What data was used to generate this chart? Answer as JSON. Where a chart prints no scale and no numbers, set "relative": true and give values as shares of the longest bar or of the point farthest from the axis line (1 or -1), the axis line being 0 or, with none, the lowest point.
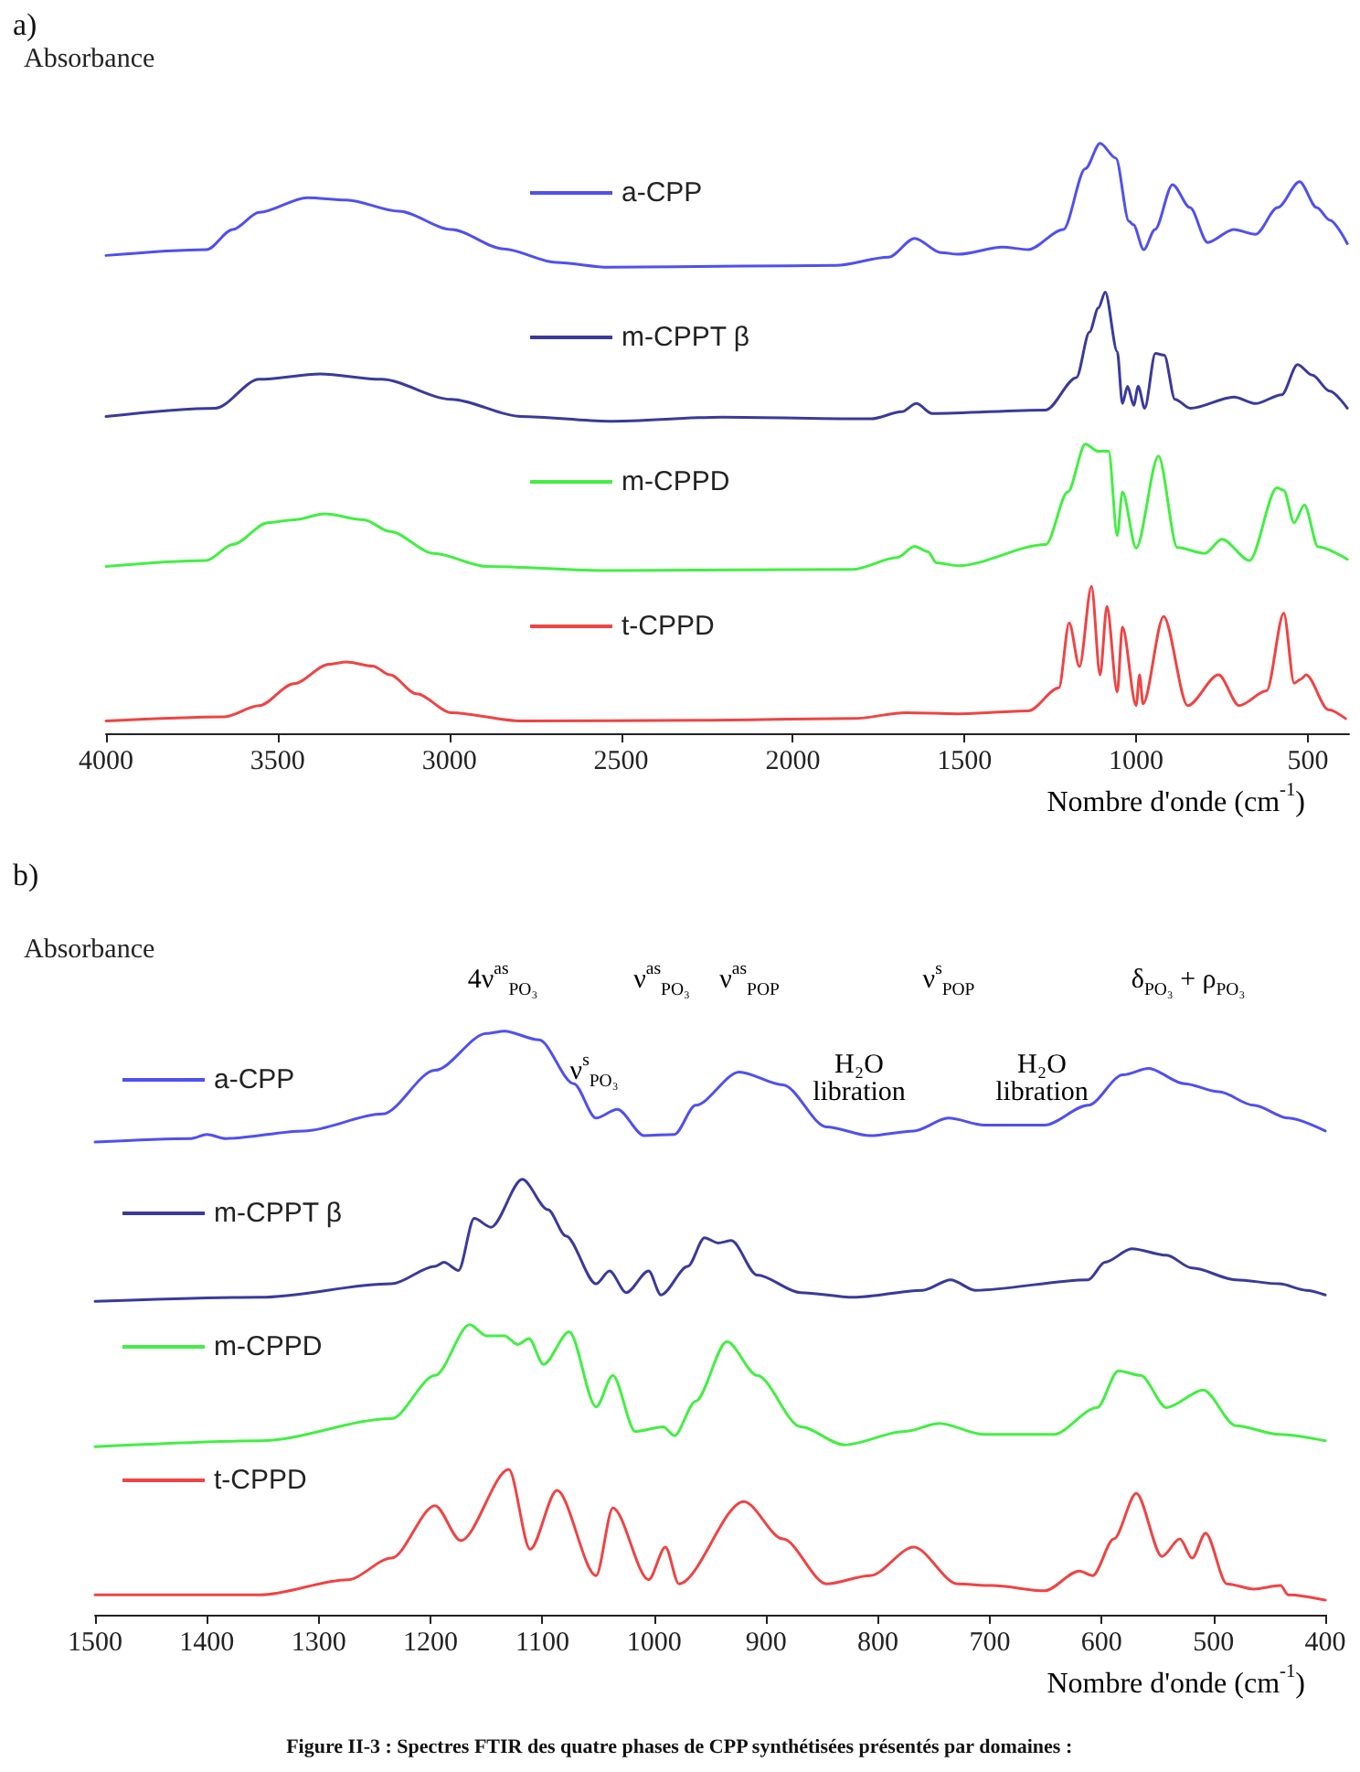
{
  "chart_data": [
    {
      "type": "line",
      "title": "a)",
      "ylabel": "Absorbance",
      "xlabel": "Nombre d'onde (cm$^{-1}$)",
      "relative": true,
      "xlim": [
        4000,
        380
      ],
      "xticks": [
        4000,
        3500,
        3000,
        2500,
        2000,
        1500,
        1000,
        500
      ],
      "grid": false,
      "legend": "left",
      "marker": "none",
      "line_style": "solid",
      "series": [
        {
          "name": "a-CPP",
          "color": "#5050ee",
          "x": [
            4000,
            3707,
            3631,
            3554,
            3414,
            3300,
            3147,
            2994,
            2842,
            2689,
            2536,
            2154,
            1874,
            1721,
            1645,
            1569,
            1518,
            1390,
            1314,
            1212,
            1148,
            1105,
            1059,
            1021,
            1008,
            978,
            945,
            894,
            843,
            792,
            716,
            652,
            588,
            524,
            474,
            436,
            385
          ],
          "values": [
            0.81,
            0.82,
            0.854,
            0.883,
            0.908,
            0.904,
            0.885,
            0.854,
            0.821,
            0.798,
            0.79,
            0.792,
            0.793,
            0.807,
            0.839,
            0.815,
            0.812,
            0.824,
            0.82,
            0.854,
            0.957,
            1,
            0.975,
            0.868,
            0.862,
            0.82,
            0.854,
            0.93,
            0.891,
            0.832,
            0.854,
            0.846,
            0.891,
            0.935,
            0.891,
            0.87,
            0.83
          ]
        },
        {
          "name": "m-CPPT β",
          "color": "#3a3a9a",
          "x": [
            4000,
            3682,
            3554,
            3376,
            3198,
            2994,
            2791,
            2536,
            2205,
            1772,
            1683,
            1640,
            1594,
            1263,
            1174,
            1136,
            1110,
            1090,
            1055,
            1040,
            1025,
            1007,
            994,
            975,
            944,
            918,
            887,
            842,
            715,
            652,
            576,
            530,
            487,
            436,
            385
          ],
          "values": [
            0.537,
            0.551,
            0.6,
            0.609,
            0.6,
            0.566,
            0.537,
            0.529,
            0.536,
            0.533,
            0.545,
            0.559,
            0.542,
            0.548,
            0.603,
            0.68,
            0.721,
            0.748,
            0.647,
            0.559,
            0.588,
            0.556,
            0.588,
            0.551,
            0.644,
            0.641,
            0.566,
            0.551,
            0.57,
            0.559,
            0.574,
            0.625,
            0.607,
            0.58,
            0.551
          ]
        },
        {
          "name": "m-CPPD",
          "color": "#44ee44",
          "x": [
            4000,
            3707,
            3631,
            3529,
            3453,
            3363,
            3249,
            3173,
            3045,
            2892,
            2536,
            1823,
            1696,
            1645,
            1607,
            1581,
            1518,
            1263,
            1199,
            1148,
            1110,
            1080,
            1055,
            1040,
            1000,
            935,
            880,
            800,
            750,
            670,
            590,
            570,
            540,
            510,
            470,
            385
          ],
          "values": [
            0.283,
            0.293,
            0.32,
            0.357,
            0.362,
            0.372,
            0.362,
            0.342,
            0.305,
            0.283,
            0.276,
            0.278,
            0.298,
            0.317,
            0.308,
            0.289,
            0.284,
            0.32,
            0.409,
            0.49,
            0.478,
            0.478,
            0.335,
            0.409,
            0.314,
            0.47,
            0.315,
            0.305,
            0.329,
            0.293,
            0.416,
            0.412,
            0.357,
            0.387,
            0.316,
            0.295
          ]
        },
        {
          "name": "t-CPPD",
          "color": "#ee4444",
          "x": [
            4000,
            3656,
            3554,
            3453,
            3351,
            3300,
            3223,
            3173,
            3096,
            2994,
            2791,
            2282,
            1823,
            1670,
            1518,
            1314,
            1225,
            1195,
            1165,
            1130,
            1105,
            1085,
            1055,
            1040,
            1000,
            990,
            980,
            920,
            850,
            760,
            700,
            620,
            570,
            540,
            520,
            505,
            440,
            390
          ],
          "values": [
            0.021,
            0.028,
            0.047,
            0.084,
            0.117,
            0.121,
            0.114,
            0.099,
            0.067,
            0.035,
            0.021,
            0.022,
            0.025,
            0.035,
            0.033,
            0.038,
            0.077,
            0.187,
            0.113,
            0.249,
            0.099,
            0.215,
            0.07,
            0.18,
            0.047,
            0.099,
            0.05,
            0.198,
            0.047,
            0.099,
            0.047,
            0.072,
            0.204,
            0.085,
            0.092,
            0.099,
            0.04,
            0.025
          ]
        }
      ]
    },
    {
      "type": "line",
      "title": "b)",
      "ylabel": "Absorbance",
      "xlabel": "Nombre d'onde (cm$^{-1}$)",
      "relative": true,
      "xlim": [
        1500,
        400
      ],
      "xticks": [
        1500,
        1400,
        1300,
        1200,
        1100,
        1000,
        900,
        800,
        700,
        600,
        500,
        400
      ],
      "grid": false,
      "legend": "left",
      "marker": "none",
      "line_style": "solid",
      "series": [
        {
          "name": "a-CPP",
          "color": "#5050ee",
          "x": [
            1500,
            1414,
            1400,
            1383,
            1313,
            1243,
            1196,
            1150,
            1134,
            1103,
            1072,
            1052,
            1033,
            1009,
            982,
            963,
            924,
            885,
            846,
            807,
            768,
            737,
            705,
            651,
            612,
            581,
            558,
            526,
            495,
            464,
            433,
            400
          ],
          "values": [
            0.81,
            0.816,
            0.823,
            0.816,
            0.829,
            0.858,
            0.933,
            0.996,
            1,
            0.985,
            0.91,
            0.851,
            0.866,
            0.821,
            0.823,
            0.873,
            0.93,
            0.908,
            0.836,
            0.821,
            0.829,
            0.851,
            0.839,
            0.839,
            0.873,
            0.925,
            0.936,
            0.91,
            0.896,
            0.873,
            0.851,
            0.829
          ]
        },
        {
          "name": "m-CPPT β",
          "color": "#3a3a9a",
          "x": [
            1500,
            1352,
            1235,
            1196,
            1188,
            1175,
            1161,
            1146,
            1118,
            1095,
            1079,
            1052,
            1040,
            1025,
            1005,
            994,
            970,
            955,
            943,
            931,
            908,
            869,
            822,
            760,
            735,
            713,
            612,
            597,
            573,
            542,
            519,
            480,
            441,
            417,
            400
          ],
          "values": [
            0.537,
            0.544,
            0.567,
            0.597,
            0.604,
            0.59,
            0.679,
            0.664,
            0.746,
            0.694,
            0.649,
            0.567,
            0.589,
            0.552,
            0.589,
            0.548,
            0.597,
            0.646,
            0.637,
            0.641,
            0.582,
            0.552,
            0.544,
            0.556,
            0.574,
            0.556,
            0.574,
            0.604,
            0.627,
            0.616,
            0.594,
            0.574,
            0.567,
            0.556,
            0.548
          ]
        },
        {
          "name": "m-CPPD",
          "color": "#44ee44",
          "x": [
            1500,
            1352,
            1235,
            1196,
            1165,
            1150,
            1134,
            1122,
            1112,
            1099,
            1076,
            1052,
            1037,
            1017,
            992,
            982,
            963,
            935,
            908,
            869,
            830,
            776,
            745,
            706,
            643,
            604,
            585,
            565,
            542,
            509,
            480,
            441,
            400
          ],
          "values": [
            0.288,
            0.298,
            0.336,
            0.41,
            0.497,
            0.478,
            0.478,
            0.463,
            0.473,
            0.429,
            0.485,
            0.356,
            0.41,
            0.314,
            0.322,
            0.307,
            0.366,
            0.468,
            0.41,
            0.322,
            0.291,
            0.314,
            0.328,
            0.309,
            0.309,
            0.355,
            0.418,
            0.41,
            0.355,
            0.385,
            0.324,
            0.309,
            0.298
          ]
        },
        {
          "name": "t-CPPD",
          "color": "#ee4444",
          "x": [
            1500,
            1352,
            1274,
            1235,
            1196,
            1173,
            1130,
            1111,
            1087,
            1052,
            1037,
            1005,
            990,
            978,
            920,
            885,
            846,
            807,
            768,
            729,
            698,
            651,
            620,
            608,
            589,
            569,
            546,
            530,
            519,
            507,
            488,
            464,
            440,
            433,
            400
          ],
          "values": [
            0.034,
            0.034,
            0.06,
            0.097,
            0.187,
            0.127,
            0.249,
            0.112,
            0.213,
            0.067,
            0.183,
            0.06,
            0.116,
            0.053,
            0.194,
            0.13,
            0.053,
            0.067,
            0.116,
            0.053,
            0.05,
            0.041,
            0.075,
            0.067,
            0.13,
            0.208,
            0.1,
            0.13,
            0.097,
            0.14,
            0.053,
            0.044,
            0.05,
            0.034,
            0.025
          ]
        }
      ],
      "annotations": [
        "4ν$^{as}$$_{PO₃}$",
        "ν$^{s}$$_{PO₃}$",
        "ν$^{as}$$_{PO₃}$",
        "ν$^{as}$$_{POP}$",
        "H₂O\nlibration",
        "ν$^{s}$$_{POP}$",
        "H₂O\nlibration",
        "δ$_{PO₃}$ + ρ$_{PO₃}$",
        "Figure II-3 : Spectres FTIR des quatre phases de CPP synthétisées présentés par domaines :"
      ]
    }
  ]
}
